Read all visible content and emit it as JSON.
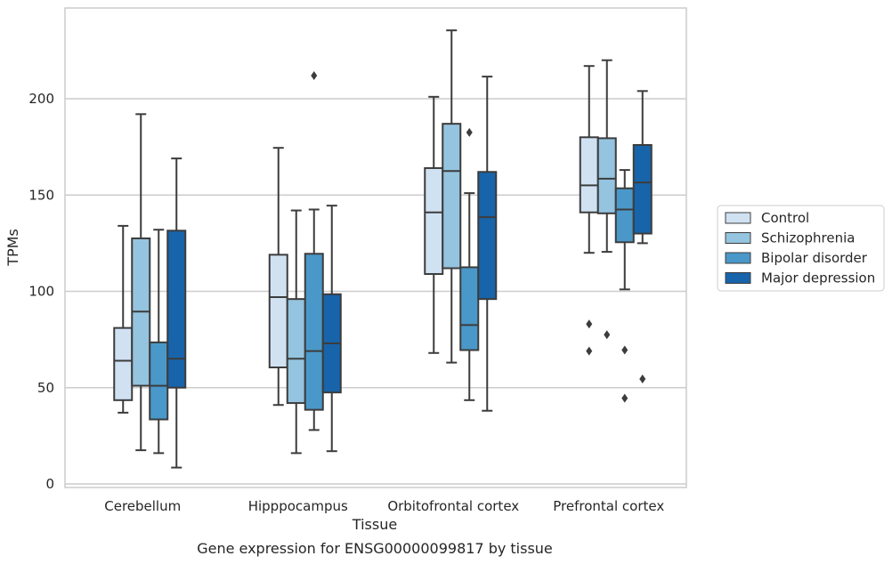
{
  "chart_data": {
    "type": "boxplot",
    "title": "",
    "caption": "Gene expression for ENSG00000099817 by tissue",
    "xlabel": "Tissue",
    "ylabel": "TPMs",
    "ylim": [
      -1,
      248
    ],
    "yticks": [
      0,
      50,
      100,
      150,
      200
    ],
    "grid": "horizontal",
    "legend_position": "right",
    "categories": [
      "Cerebellum",
      "Hipppocampus",
      "Orbitofrontal cortex",
      "Prefrontal cortex"
    ],
    "series": [
      {
        "name": "Control",
        "color": "#d0e1f2",
        "boxes": [
          {
            "whislo": 37,
            "q1": 43.5,
            "med": 64,
            "q3": 81,
            "whishi": 134,
            "fliers": []
          },
          {
            "whislo": 41,
            "q1": 60.5,
            "med": 97,
            "q3": 119,
            "whishi": 174.5,
            "fliers": []
          },
          {
            "whislo": 68,
            "q1": 109,
            "med": 141,
            "q3": 164,
            "whishi": 201,
            "fliers": []
          },
          {
            "whislo": 120,
            "q1": 141,
            "med": 155,
            "q3": 180,
            "whishi": 217,
            "fliers": [
              83,
              69
            ]
          }
        ]
      },
      {
        "name": "Schizophrenia",
        "color": "#94c4df",
        "boxes": [
          {
            "whislo": 17.5,
            "q1": 51,
            "med": 89.5,
            "q3": 127.5,
            "whishi": 192,
            "fliers": []
          },
          {
            "whislo": 16,
            "q1": 42,
            "med": 65,
            "q3": 96,
            "whishi": 142,
            "fliers": []
          },
          {
            "whislo": 63,
            "q1": 112,
            "med": 162.5,
            "q3": 187,
            "whishi": 235.5,
            "fliers": []
          },
          {
            "whislo": 120.5,
            "q1": 140.5,
            "med": 158.5,
            "q3": 179.5,
            "whishi": 220,
            "fliers": [
              77.5
            ]
          }
        ]
      },
      {
        "name": "Bipolar disorder",
        "color": "#4a98c9",
        "boxes": [
          {
            "whislo": 16,
            "q1": 33.5,
            "med": 51,
            "q3": 73.5,
            "whishi": 132,
            "fliers": []
          },
          {
            "whislo": 28,
            "q1": 38.5,
            "med": 69,
            "q3": 119.5,
            "whishi": 142.5,
            "fliers": [
              212
            ]
          },
          {
            "whislo": 43.5,
            "q1": 69.5,
            "med": 82.5,
            "q3": 112.5,
            "whishi": 151,
            "fliers": [
              182.5
            ]
          },
          {
            "whislo": 101,
            "q1": 125.5,
            "med": 142.5,
            "q3": 153.5,
            "whishi": 163,
            "fliers": [
              69.5,
              44.5
            ]
          }
        ]
      },
      {
        "name": "Major depression",
        "color": "#1764ab",
        "boxes": [
          {
            "whislo": 8.5,
            "q1": 50,
            "med": 65,
            "q3": 131.5,
            "whishi": 169,
            "fliers": []
          },
          {
            "whislo": 17,
            "q1": 47.5,
            "med": 73,
            "q3": 98.5,
            "whishi": 144.5,
            "fliers": []
          },
          {
            "whislo": 38,
            "q1": 96,
            "med": 138.5,
            "q3": 162,
            "whishi": 211.5,
            "fliers": []
          },
          {
            "whislo": 125,
            "q1": 130,
            "med": 156.5,
            "q3": 176,
            "whishi": 204,
            "fliers": [
              54.5
            ]
          }
        ]
      }
    ]
  }
}
